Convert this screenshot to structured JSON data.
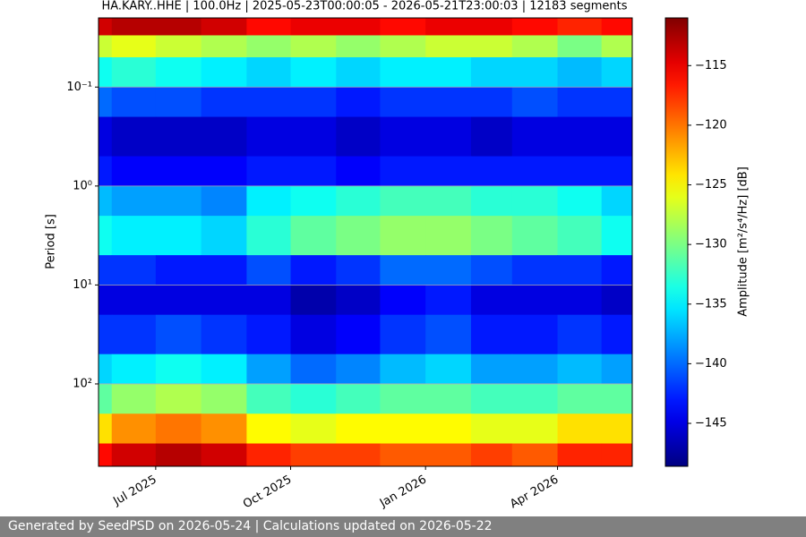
{
  "chart_data": {
    "type": "heatmap",
    "title": "HA.KARY..HHE | 100.0Hz | 2025-05-23T00:00:05 - 2026-05-21T23:00:03 | 12183 segments",
    "y_label": "Period [s]",
    "colorbar_label": "Amplitude [m²/s⁴/Hz] [dB]",
    "x": [
      "2025-05",
      "2025-06",
      "2025-07",
      "2025-08",
      "2025-09",
      "2025-10",
      "2025-11",
      "2025-12",
      "2026-01",
      "2026-02",
      "2026-03",
      "2026-04",
      "2026-05"
    ],
    "xlim": [
      "2025-05-23T00:00:05",
      "2026-05-21T23:00:03"
    ],
    "xticks": [
      {
        "value": "2025-07",
        "label": "Jul 2025"
      },
      {
        "value": "2025-10",
        "label": "Oct 2025"
      },
      {
        "value": "2026-01",
        "label": "Jan 2026"
      },
      {
        "value": "2026-04",
        "label": "Apr 2026"
      }
    ],
    "y_edges": [
      0.02,
      0.03,
      0.05,
      0.1,
      0.2,
      0.5,
      1,
      2,
      5,
      10,
      20,
      50,
      100,
      200,
      400,
      680
    ],
    "ylim": [
      0.02,
      680
    ],
    "log_y": true,
    "y_inverted": true,
    "yticks": [
      {
        "value": 0.1,
        "label": "10⁻¹"
      },
      {
        "value": 1,
        "label": "10⁰"
      },
      {
        "value": 10,
        "label": "10¹"
      },
      {
        "value": 100,
        "label": "10²"
      }
    ],
    "grid": true,
    "colormap": "jet",
    "clim": [
      -148.6,
      -111
    ],
    "cticks": [
      {
        "value": -145,
        "label": "−145"
      },
      {
        "value": -140,
        "label": "−140"
      },
      {
        "value": -135,
        "label": "−135"
      },
      {
        "value": -130,
        "label": "−130"
      },
      {
        "value": -125,
        "label": "−125"
      },
      {
        "value": -120,
        "label": "−120"
      },
      {
        "value": -115,
        "label": "−115"
      }
    ],
    "z": [
      [
        -114,
        -113,
        -113,
        -114,
        -116,
        -115,
        -115,
        -116,
        -115,
        -115,
        -116,
        -117,
        -116
      ],
      [
        -127,
        -126,
        -127,
        -128,
        -129,
        -128,
        -129,
        -128,
        -127,
        -127,
        -128,
        -130,
        -128
      ],
      [
        -134,
        -133,
        -134,
        -135,
        -136,
        -135,
        -136,
        -135,
        -135,
        -136,
        -136,
        -137,
        -136
      ],
      [
        -140,
        -141,
        -141,
        -142,
        -142,
        -142,
        -143,
        -142,
        -142,
        -142,
        -141,
        -142,
        -142
      ],
      [
        -145,
        -146,
        -146,
        -146,
        -145,
        -145,
        -146,
        -145,
        -145,
        -146,
        -145,
        -145,
        -145
      ],
      [
        -143,
        -144,
        -144,
        -144,
        -143,
        -143,
        -144,
        -143,
        -143,
        -143,
        -143,
        -143,
        -143
      ],
      [
        -137,
        -138,
        -138,
        -139,
        -135,
        -134,
        -133,
        -132,
        -132,
        -133,
        -133,
        -134,
        -136
      ],
      [
        -134,
        -135,
        -135,
        -136,
        -133,
        -131,
        -130,
        -129,
        -129,
        -130,
        -131,
        -132,
        -134
      ],
      [
        -142,
        -142,
        -143,
        -143,
        -141,
        -143,
        -142,
        -140,
        -140,
        -141,
        -142,
        -142,
        -143
      ],
      [
        -145,
        -145,
        -145,
        -145,
        -145,
        -147,
        -146,
        -144,
        -143,
        -145,
        -145,
        -145,
        -146
      ],
      [
        -142,
        -142,
        -141,
        -142,
        -143,
        -145,
        -144,
        -142,
        -141,
        -143,
        -143,
        -142,
        -143
      ],
      [
        -136,
        -135,
        -134,
        -135,
        -138,
        -140,
        -139,
        -137,
        -136,
        -138,
        -138,
        -137,
        -138
      ],
      [
        -131,
        -129,
        -128,
        -129,
        -132,
        -133,
        -132,
        -131,
        -131,
        -132,
        -132,
        -131,
        -131
      ],
      [
        -124,
        -121,
        -120,
        -121,
        -125,
        -126,
        -125,
        -125,
        -125,
        -126,
        -126,
        -124,
        -124
      ],
      [
        -116,
        -114,
        -113,
        -114,
        -117,
        -118,
        -118,
        -119,
        -119,
        -118,
        -119,
        -117,
        -117
      ]
    ]
  },
  "footer": "Generated by SeedPSD on 2026-05-24 | Calculations updated on 2026-05-22"
}
